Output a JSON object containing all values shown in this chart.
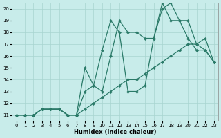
{
  "xlabel": "Humidex (Indice chaleur)",
  "background_color": "#c8ecea",
  "grid_color": "#a8d4d0",
  "line_color": "#2a7a68",
  "xlim": [
    -0.5,
    23.5
  ],
  "ylim": [
    10.5,
    20.5
  ],
  "xticks": [
    0,
    1,
    2,
    3,
    4,
    5,
    6,
    7,
    8,
    9,
    10,
    11,
    12,
    13,
    14,
    15,
    16,
    17,
    18,
    19,
    20,
    21,
    22,
    23
  ],
  "yticks": [
    11,
    12,
    13,
    14,
    15,
    16,
    17,
    18,
    19,
    20
  ],
  "series1_x": [
    0,
    1,
    2,
    3,
    4,
    5,
    6,
    7,
    8,
    9,
    10,
    11,
    12,
    13,
    14,
    15,
    16,
    17,
    18,
    19,
    20,
    21,
    22,
    23
  ],
  "series1_y": [
    11,
    11,
    11,
    11.5,
    11.5,
    11.5,
    11,
    11,
    15,
    13.5,
    13,
    16,
    19,
    18,
    18,
    17.5,
    17.5,
    20,
    20.5,
    19,
    19,
    17,
    16.5,
    15.5
  ],
  "series2_x": [
    0,
    1,
    2,
    3,
    4,
    5,
    6,
    7,
    8,
    9,
    10,
    11,
    12,
    13,
    14,
    15,
    16,
    17,
    18,
    19,
    20,
    21,
    22,
    23
  ],
  "series2_y": [
    11,
    11,
    11,
    11.5,
    11.5,
    11.5,
    11,
    11,
    13,
    13.5,
    16.5,
    19,
    18,
    13,
    13,
    13.5,
    17.5,
    20.5,
    19,
    19,
    17.5,
    16.5,
    16.5,
    15.5
  ],
  "series3_x": [
    0,
    1,
    2,
    3,
    4,
    5,
    6,
    7,
    8,
    9,
    10,
    11,
    12,
    13,
    14,
    15,
    16,
    17,
    18,
    19,
    20,
    21,
    22,
    23
  ],
  "series3_y": [
    11,
    11,
    11,
    11.5,
    11.5,
    11.5,
    11,
    11,
    11.5,
    12,
    12.5,
    13,
    13.5,
    14,
    14,
    14.5,
    15,
    15.5,
    16,
    16.5,
    17,
    17,
    17.5,
    15.5
  ]
}
